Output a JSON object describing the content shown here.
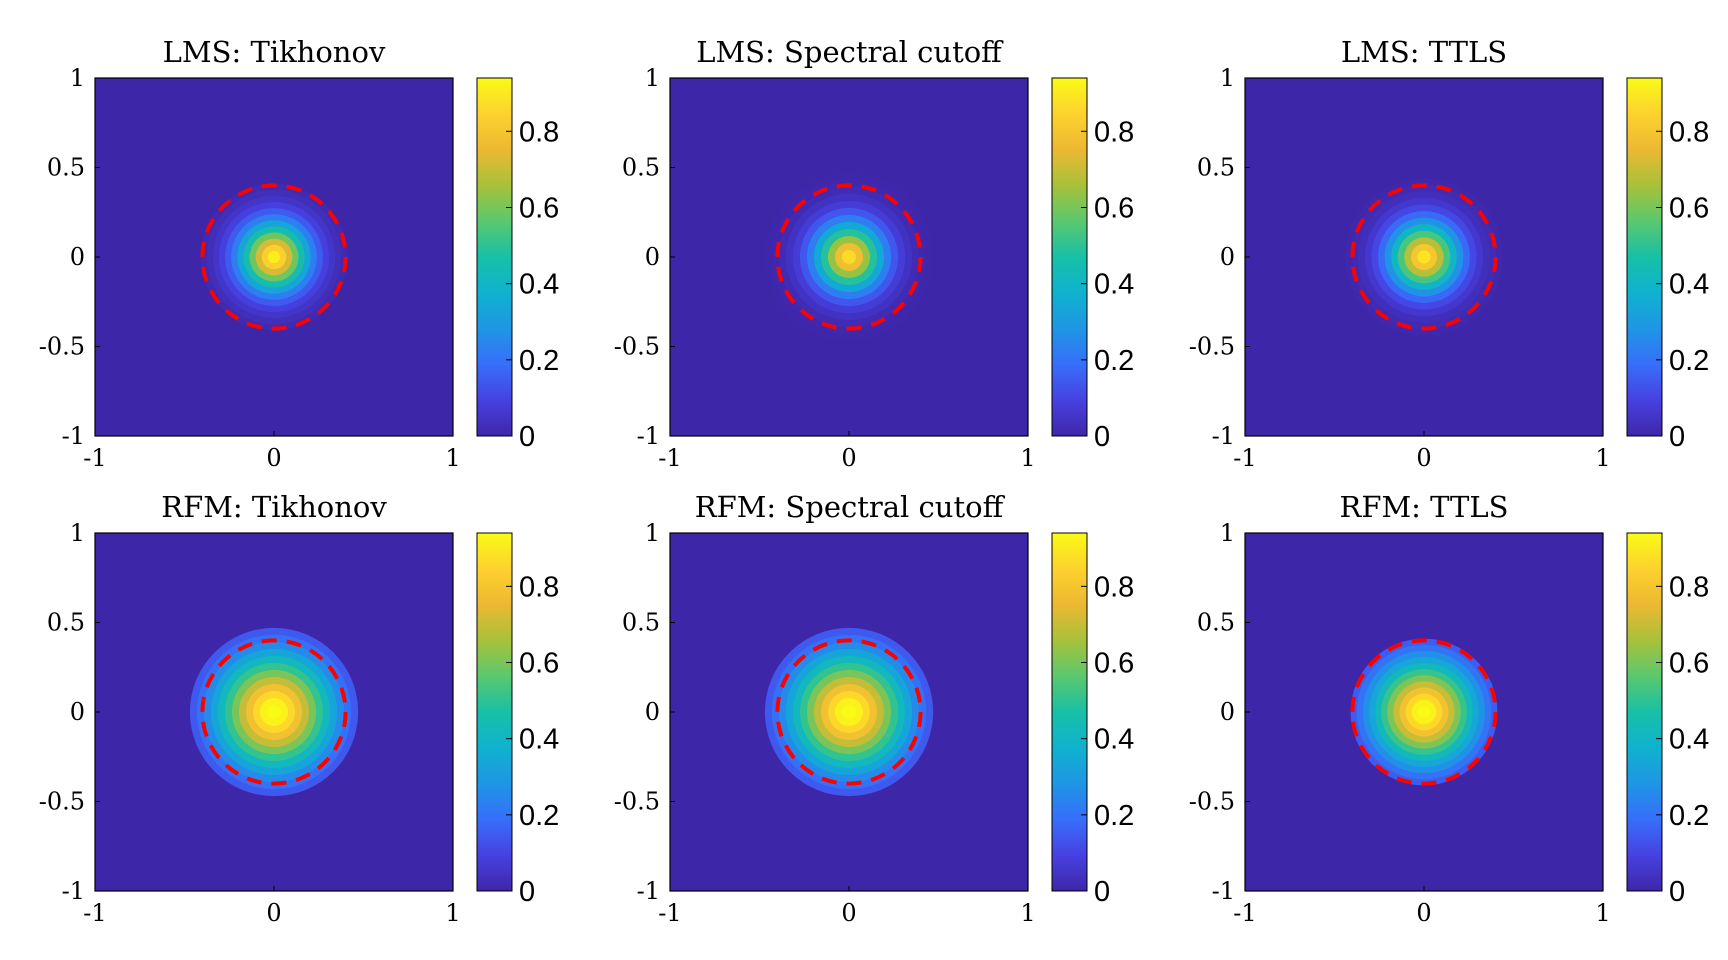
{
  "chart_data": [
    {
      "type": "heatmap",
      "title": "LMS: Tikhonov",
      "xlim": [
        -1,
        1
      ],
      "ylim": [
        -1,
        1
      ],
      "xticks": [
        "-1",
        "0",
        "1"
      ],
      "yticks": [
        "1",
        "0.5",
        "0",
        "-0.5",
        "-1"
      ],
      "colorbar": {
        "range": [
          0,
          0.94
        ],
        "ticks": [
          "0",
          "0.2",
          "0.4",
          "0.6",
          "0.8"
        ]
      },
      "field": {
        "peak": 0.94,
        "support_radius": 0.41,
        "width": 0.2,
        "levels": 12
      },
      "reference_circle": {
        "center": [
          0,
          0
        ],
        "radius": 0.4,
        "style": "red dashed"
      }
    },
    {
      "type": "heatmap",
      "title": "LMS: Spectral cutoff",
      "xlim": [
        -1,
        1
      ],
      "ylim": [
        -1,
        1
      ],
      "xticks": [
        "-1",
        "0",
        "1"
      ],
      "yticks": [
        "1",
        "0.5",
        "0",
        "-0.5",
        "-1"
      ],
      "colorbar": {
        "range": [
          0,
          0.94
        ],
        "ticks": [
          "0",
          "0.2",
          "0.4",
          "0.6",
          "0.8"
        ]
      },
      "field": {
        "peak": 0.9,
        "support_radius": 0.47,
        "width": 0.2,
        "levels": 12
      },
      "reference_circle": {
        "center": [
          0,
          0
        ],
        "radius": 0.4,
        "style": "red dashed"
      }
    },
    {
      "type": "heatmap",
      "title": "LMS: TTLS",
      "xlim": [
        -1,
        1
      ],
      "ylim": [
        -1,
        1
      ],
      "xticks": [
        "-1",
        "0",
        "1"
      ],
      "yticks": [
        "1",
        "0.5",
        "0",
        "-0.5",
        "-1"
      ],
      "colorbar": {
        "range": [
          0,
          0.94
        ],
        "ticks": [
          "0",
          "0.2",
          "0.4",
          "0.6",
          "0.8"
        ]
      },
      "field": {
        "peak": 0.92,
        "support_radius": 0.44,
        "width": 0.2,
        "levels": 12
      },
      "reference_circle": {
        "center": [
          0,
          0
        ],
        "radius": 0.4,
        "style": "red dashed"
      }
    },
    {
      "type": "heatmap",
      "title": "RFM: Tikhonov",
      "xlim": [
        -1,
        1
      ],
      "ylim": [
        -1,
        1
      ],
      "xticks": [
        "-1",
        "0",
        "1"
      ],
      "yticks": [
        "1",
        "0.5",
        "0",
        "-0.5",
        "-1"
      ],
      "colorbar": {
        "range": [
          0,
          0.94
        ],
        "ticks": [
          "0",
          "0.2",
          "0.4",
          "0.6",
          "0.8"
        ]
      },
      "field": {
        "peak": 0.97,
        "support_radius": 0.47,
        "width": 0.34,
        "levels": 12
      },
      "reference_circle": {
        "center": [
          0,
          0
        ],
        "radius": 0.4,
        "style": "red dashed"
      }
    },
    {
      "type": "heatmap",
      "title": "RFM: Spectral cutoff",
      "xlim": [
        -1,
        1
      ],
      "ylim": [
        -1,
        1
      ],
      "xticks": [
        "-1",
        "0",
        "1"
      ],
      "yticks": [
        "1",
        "0.5",
        "0",
        "-0.5",
        "-1"
      ],
      "colorbar": {
        "range": [
          0,
          0.94
        ],
        "ticks": [
          "0",
          "0.2",
          "0.4",
          "0.6",
          "0.8"
        ]
      },
      "field": {
        "peak": 0.97,
        "support_radius": 0.47,
        "width": 0.34,
        "levels": 12
      },
      "reference_circle": {
        "center": [
          0,
          0
        ],
        "radius": 0.4,
        "style": "red dashed"
      }
    },
    {
      "type": "heatmap",
      "title": "RFM: TTLS",
      "xlim": [
        -1,
        1
      ],
      "ylim": [
        -1,
        1
      ],
      "xticks": [
        "-1",
        "0",
        "1"
      ],
      "yticks": [
        "1",
        "0.5",
        "0",
        "-0.5",
        "-1"
      ],
      "colorbar": {
        "range": [
          0,
          0.94
        ],
        "ticks": [
          "0",
          "0.2",
          "0.4",
          "0.6",
          "0.8"
        ]
      },
      "field": {
        "peak": 0.97,
        "support_radius": 0.41,
        "width": 0.3,
        "levels": 12
      },
      "reference_circle": {
        "center": [
          0,
          0
        ],
        "radius": 0.4,
        "style": "red dashed"
      }
    }
  ],
  "colors": {
    "background": "#3e26a8",
    "reference_circle": "#ff0000",
    "colormap": "parula"
  }
}
